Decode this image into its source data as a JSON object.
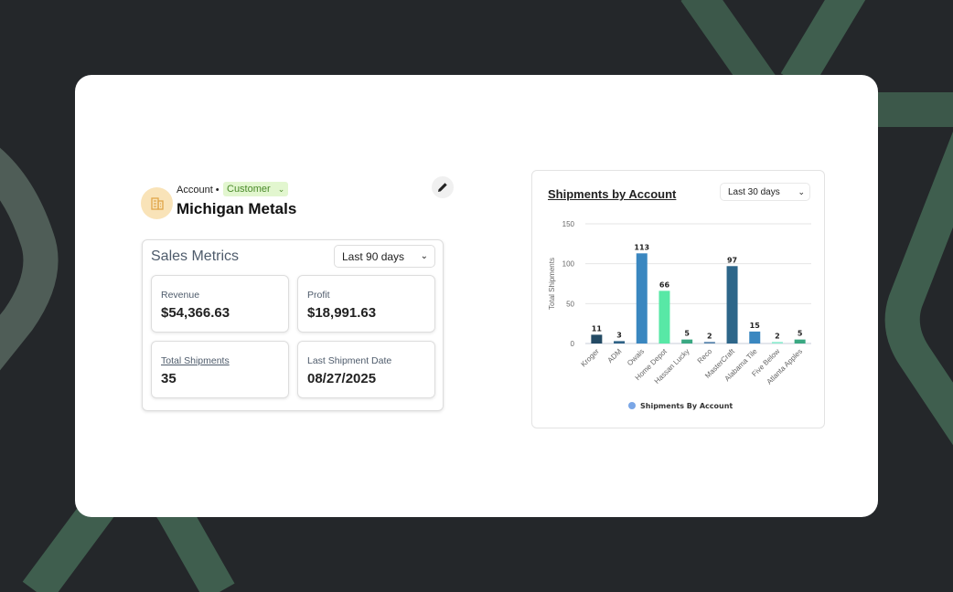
{
  "account": {
    "type_label": "Account •",
    "status": "Customer",
    "name": "Michigan Metals",
    "avatar_icon": "building-icon",
    "edit_icon": "pencil-icon"
  },
  "sales_metrics": {
    "title": "Sales Metrics",
    "period": "Last 90 days",
    "metrics": [
      {
        "label": "Revenue",
        "value": "$54,366.63"
      },
      {
        "label": "Profit",
        "value": "$18,991.63"
      },
      {
        "label": "Total Shipments",
        "value": "35"
      },
      {
        "label": "Last Shipment Date",
        "value": "08/27/2025"
      }
    ]
  },
  "chart_data": {
    "type": "bar",
    "title": "Shipments by Account",
    "period": "Last 30 days",
    "ylabel": "Total Shipments",
    "xlabel": "",
    "ylim": [
      0,
      150
    ],
    "yticks": [
      0,
      50,
      100,
      150
    ],
    "grid": true,
    "legend": "bottom",
    "categories": [
      "Kroger",
      "ADM",
      "Owais",
      "Home Depot",
      "Hassan Lucky",
      "Reco",
      "MasterCraft",
      "Alabama Tile",
      "Five Below",
      "Atlanta Apples"
    ],
    "series": [
      {
        "name": "Shipments By Account",
        "values": [
          11,
          3,
          113,
          66,
          5,
          2,
          97,
          15,
          2,
          5
        ]
      }
    ],
    "colors": [
      "#234a64",
      "#2e6286",
      "#3a87c0",
      "#58e8a6",
      "#3aa882",
      "#5a86ad",
      "#2d6689",
      "#3a87c0",
      "#90ecd0",
      "#3aa882"
    ],
    "legend_color": "#7aa6e6"
  }
}
